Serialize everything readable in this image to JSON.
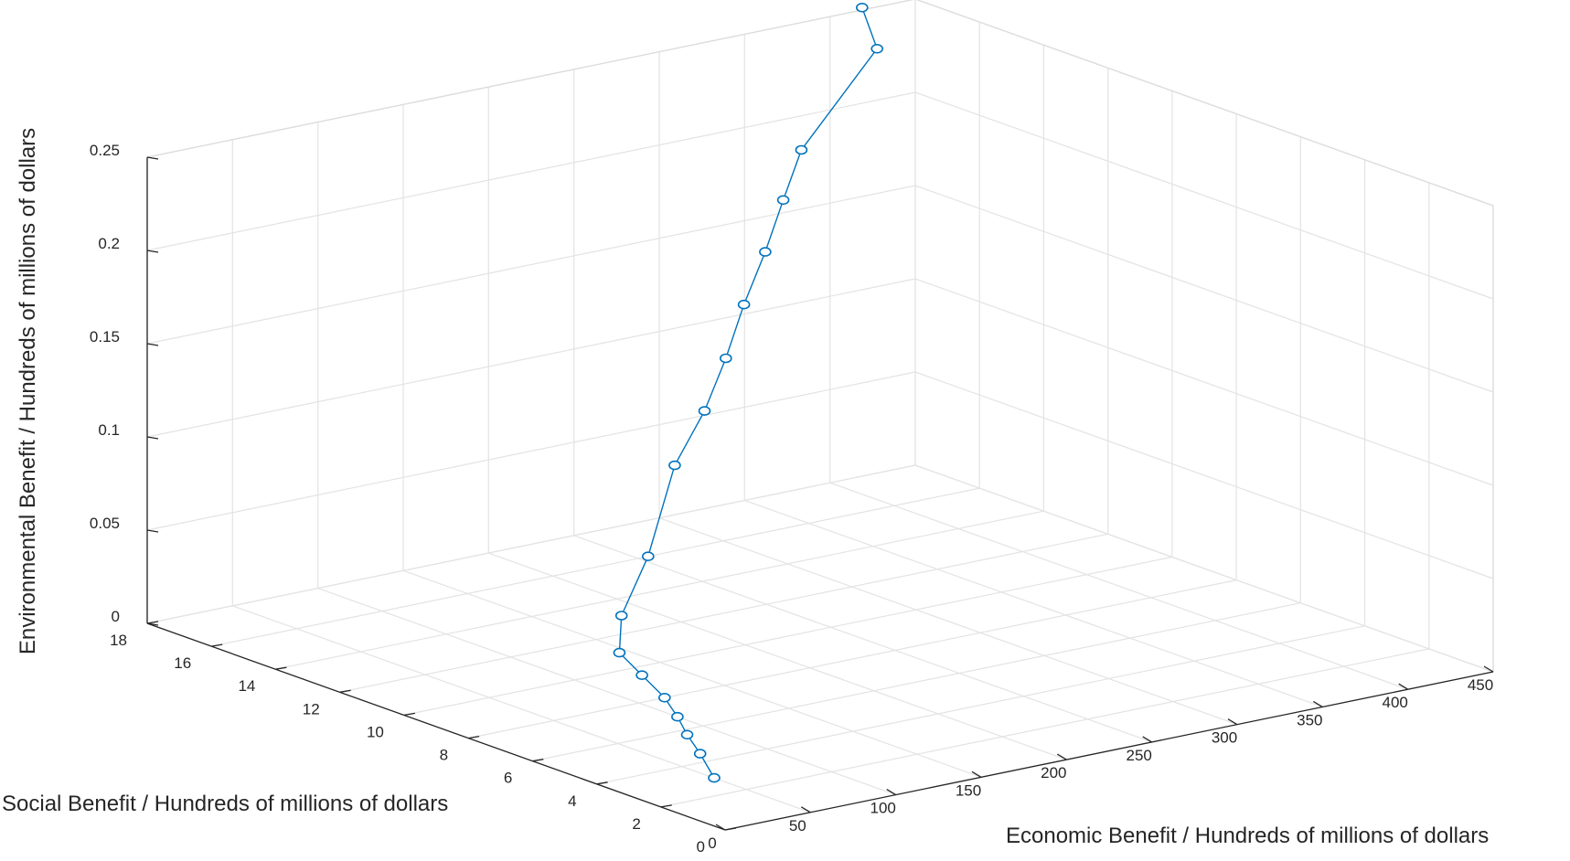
{
  "chart_data": {
    "type": "line3d",
    "title": "",
    "xlabel": "Economic Benefit / Hundreds of millions of dollars",
    "ylabel": "Social Benefit / Hundreds of millions of dollars",
    "zlabel": "Environmental Benefit / Hundreds of millions of dollars",
    "xlim": [
      0,
      450
    ],
    "ylim": [
      0,
      18
    ],
    "zlim": [
      0,
      0.25
    ],
    "x_ticks": [
      0,
      50,
      100,
      150,
      200,
      250,
      300,
      350,
      400,
      450
    ],
    "y_ticks": [
      0,
      2,
      4,
      6,
      8,
      10,
      12,
      14,
      16,
      18
    ],
    "z_ticks": [
      0,
      0.05,
      0.1,
      0.15,
      0.2,
      0.25
    ],
    "x_tick_labels": [
      "0",
      "50",
      "100",
      "150",
      "200",
      "250",
      "300",
      "350",
      "400",
      "450"
    ],
    "y_tick_labels": [
      "0",
      "2",
      "4",
      "6",
      "8",
      "10",
      "12",
      "14",
      "16",
      "18"
    ],
    "z_tick_labels": [
      "0",
      "0.05",
      "0.1",
      "0.15",
      "0.2",
      "0.25"
    ],
    "grid": true,
    "marker": "circle",
    "line_color": "#0072bd",
    "series": [
      {
        "points": [
          {
            "x": 50,
            "y": 3.0,
            "z": 0.0
          },
          {
            "x": 70,
            "y": 4.5,
            "z": 0.0
          },
          {
            "x": 85,
            "y": 5.7,
            "z": 0.0
          },
          {
            "x": 100,
            "y": 6.8,
            "z": 0.0
          },
          {
            "x": 115,
            "y": 8.0,
            "z": 0.0
          },
          {
            "x": 130,
            "y": 9.5,
            "z": 0.0
          },
          {
            "x": 145,
            "y": 11.0,
            "z": 0.0
          },
          {
            "x": 165,
            "y": 12.0,
            "z": 0.01
          },
          {
            "x": 190,
            "y": 12.5,
            "z": 0.034
          },
          {
            "x": 215,
            "y": 13.0,
            "z": 0.075
          },
          {
            "x": 240,
            "y": 13.4,
            "z": 0.097
          },
          {
            "x": 260,
            "y": 13.8,
            "z": 0.119
          },
          {
            "x": 280,
            "y": 14.3,
            "z": 0.141
          },
          {
            "x": 300,
            "y": 14.7,
            "z": 0.163
          },
          {
            "x": 320,
            "y": 15.2,
            "z": 0.184
          },
          {
            "x": 340,
            "y": 15.7,
            "z": 0.204
          },
          {
            "x": 390,
            "y": 16.0,
            "z": 0.247
          },
          {
            "x": 400,
            "y": 17.0,
            "z": 0.261
          }
        ]
      }
    ]
  }
}
